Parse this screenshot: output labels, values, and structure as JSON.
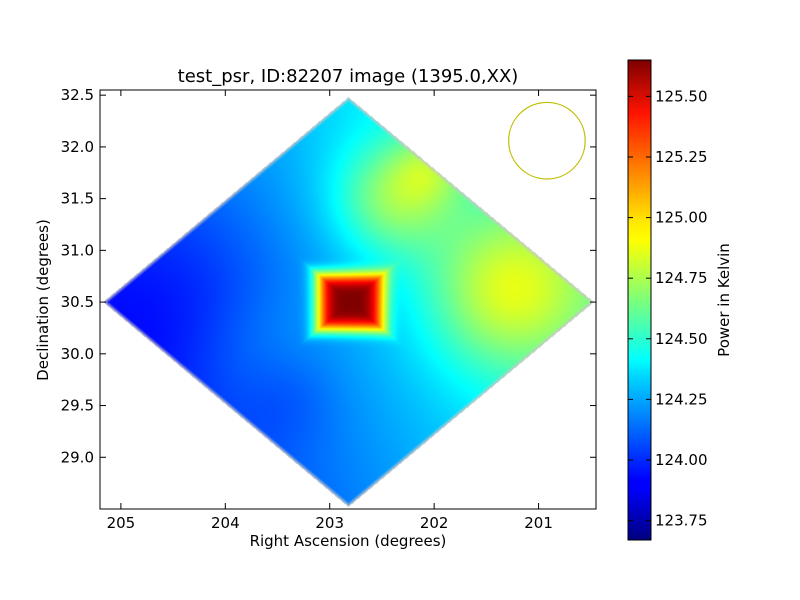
{
  "chart_data": {
    "type": "heatmap",
    "title": "test_psr, ID:82207 image (1395.0,XX)",
    "xlabel": "Right Ascension (degrees)",
    "ylabel": "Declination (degrees)",
    "xlim": [
      205.2,
      200.45
    ],
    "ylim": [
      28.5,
      32.55
    ],
    "x_ticks": [
      205,
      204,
      203,
      202,
      201
    ],
    "y_ticks": [
      29.0,
      29.5,
      30.0,
      30.5,
      31.0,
      31.5,
      32.0,
      32.5
    ],
    "x_tick_labels": [
      "205",
      "204",
      "203",
      "202",
      "201"
    ],
    "y_tick_labels": [
      "29.0",
      "29.5",
      "30.0",
      "30.5",
      "31.0",
      "31.5",
      "32.0",
      "32.5"
    ],
    "image_region": {
      "shape": "diamond",
      "center": [
        202.82,
        30.5
      ],
      "half_width_ra": 2.35,
      "half_height_dec": 1.98,
      "value_range": [
        123.9,
        125.7
      ]
    },
    "peak": {
      "ra": 202.8,
      "dec": 30.5,
      "value": 125.65
    },
    "beam": {
      "ra": 200.92,
      "dec": 32.06,
      "radius_dec": 0.37,
      "color": "#bfbf00"
    },
    "colorbar": {
      "label": "Power in Kelvin",
      "min": 123.67,
      "max": 125.65,
      "ticks": [
        123.75,
        124.0,
        124.25,
        124.5,
        124.75,
        125.0,
        125.25,
        125.5
      ],
      "tick_labels": [
        "123.75",
        "124.00",
        "124.25",
        "124.50",
        "124.75",
        "125.00",
        "125.25",
        "125.50"
      ],
      "colormap": "jet"
    }
  }
}
